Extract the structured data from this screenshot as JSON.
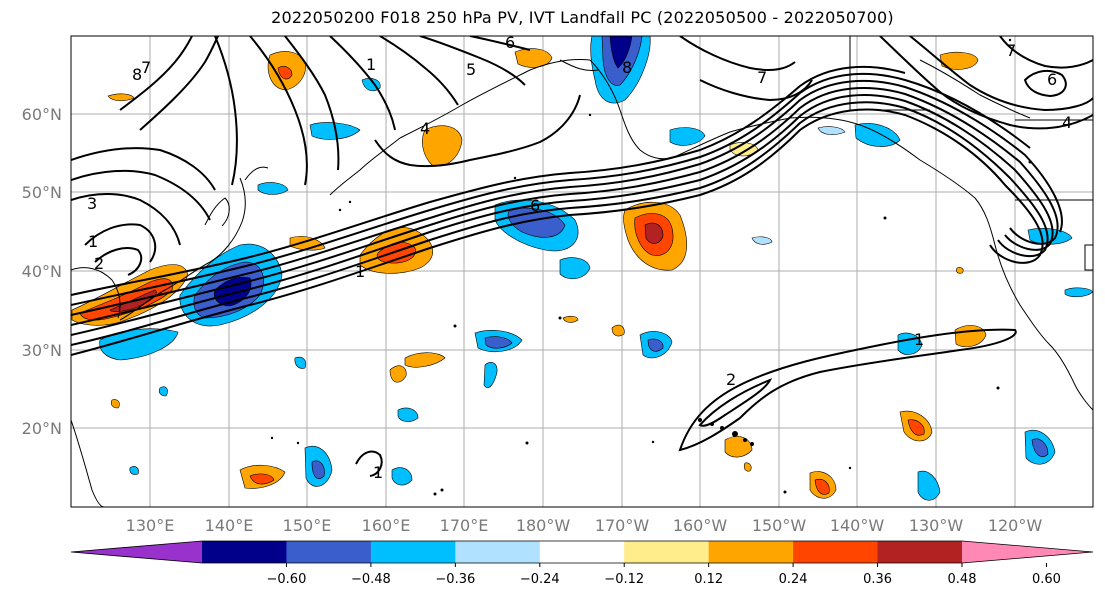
{
  "title": "2022050200 F018 250 hPa PV, IVT Landfall PC (2022050500 - 2022050700)",
  "lat_labels": [
    "60°N",
    "50°N",
    "40°N",
    "30°N",
    "20°N"
  ],
  "lon_labels": [
    "130°E",
    "140°E",
    "150°E",
    "160°E",
    "170°E",
    "180°W",
    "170°W",
    "160°W",
    "150°W",
    "140°W",
    "130°W",
    "120°W"
  ],
  "colorbar": {
    "ticks": [
      "−0.60",
      "−0.48",
      "−0.36",
      "−0.24",
      "−0.12",
      "0.12",
      "0.24",
      "0.36",
      "0.48",
      "0.60"
    ],
    "colors": [
      "#9932cc",
      "#00008b",
      "#3a5fcd",
      "#00bfff",
      "#b0e2ff",
      "#ffffff",
      "#ffec8b",
      "#ffa500",
      "#ff4500",
      "#b22222",
      "#ff89b4"
    ]
  },
  "contour_labels": [
    "8",
    "7",
    "1",
    "5",
    "6",
    "4",
    "3",
    "1",
    "2",
    "6",
    "1",
    "8",
    "7",
    "6",
    "7",
    "4",
    "1",
    "2",
    "1"
  ],
  "colors": {
    "land_outline": "#000000",
    "grid": "#8c8c8c",
    "contour": "#000000"
  }
}
